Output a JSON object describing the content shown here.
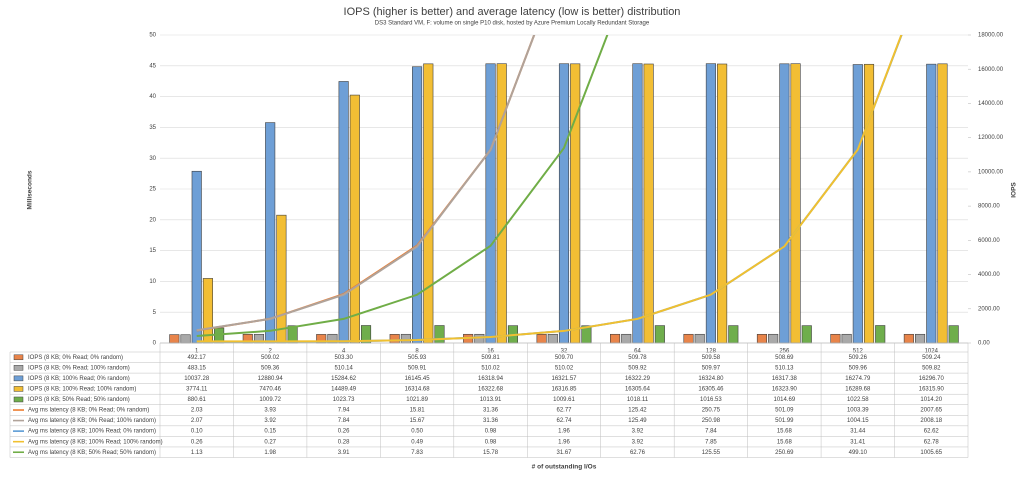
{
  "chart_data": {
    "type": "bar-line-table",
    "title": "IOPS (higher is better) and average latency (low is better) distribution",
    "subtitle": "DS3 Standard VM, F: volume on single P10 disk, hosted by Azure Premium Locally Redundant Storage",
    "y_label": "Milliseconds",
    "y2_label": "IOPS",
    "x_label": "# of outstanding I/Os",
    "categories": [
      "1",
      "2",
      "4",
      "8",
      "16",
      "32",
      "64",
      "128",
      "256",
      "512",
      "1024"
    ],
    "ylim": [
      0,
      50
    ],
    "yticks": [
      0,
      5,
      10,
      15,
      20,
      25,
      30,
      35,
      40,
      45,
      50
    ],
    "y2lim": [
      0,
      18000
    ],
    "y2ticks": [
      {
        "value": 0,
        "label": "0.00"
      },
      {
        "value": 2000,
        "label": "2000.00"
      },
      {
        "value": 4000,
        "label": "4000.00"
      },
      {
        "value": 6000,
        "label": "6000.00"
      },
      {
        "value": 8000,
        "label": "8000.00"
      },
      {
        "value": 10000,
        "label": "10000.00"
      },
      {
        "value": 12000,
        "label": "12000.00"
      },
      {
        "value": 14000,
        "label": "14000.00"
      },
      {
        "value": 16000,
        "label": "16000.00"
      },
      {
        "value": 18000,
        "label": "18000.00"
      }
    ],
    "series": [
      {
        "name": "IOPS (8 KB; 0% Read; 0% random)",
        "type": "bar",
        "axis": "y2",
        "color": "#e8844a",
        "values": [
          492.17,
          509.02,
          503.3,
          505.93,
          509.81,
          509.7,
          509.78,
          509.58,
          508.69,
          509.26,
          509.24
        ],
        "value_labels": [
          "492.17",
          "509.02",
          "503.30",
          "505.93",
          "509.81",
          "509.70",
          "509.78",
          "509.58",
          "508.69",
          "509.26",
          "509.24"
        ]
      },
      {
        "name": "IOPS (8 KB; 0% Read; 100% random)",
        "type": "bar",
        "axis": "y2",
        "color": "#a9a9a9",
        "values": [
          483.15,
          509.36,
          510.14,
          509.91,
          510.02,
          510.02,
          509.92,
          509.97,
          510.13,
          509.96,
          509.82
        ],
        "value_labels": [
          "483.15",
          "509.36",
          "510.14",
          "509.91",
          "510.02",
          "510.02",
          "509.92",
          "509.97",
          "510.13",
          "509.96",
          "509.82"
        ]
      },
      {
        "name": "IOPS (8 KB; 100% Read; 0% random)",
        "type": "bar",
        "axis": "y2",
        "color": "#6e9fd6",
        "values": [
          10037.28,
          12880.94,
          15284.62,
          16145.45,
          16318.94,
          16321.57,
          16322.29,
          16324.8,
          16317.38,
          16274.79,
          16296.7
        ],
        "value_labels": [
          "10037.28",
          "12880.94",
          "15284.62",
          "16145.45",
          "16318.94",
          "16321.57",
          "16322.29",
          "16324.80",
          "16317.38",
          "16274.79",
          "16296.70"
        ]
      },
      {
        "name": "IOPS (8 KB; 100% Read; 100% random)",
        "type": "bar",
        "axis": "y2",
        "color": "#f2be34",
        "values": [
          3774.11,
          7470.46,
          14489.49,
          16314.68,
          16322.68,
          16316.85,
          16305.64,
          16305.46,
          16323.9,
          16289.68,
          16315.9
        ],
        "value_labels": [
          "3774.11",
          "7470.46",
          "14489.49",
          "16314.68",
          "16322.68",
          "16316.85",
          "16305.64",
          "16305.46",
          "16323.90",
          "16289.68",
          "16315.90"
        ]
      },
      {
        "name": "IOPS (8 KB; 50% Read; 50% random)",
        "type": "bar",
        "axis": "y2",
        "color": "#6fae4c",
        "values": [
          880.61,
          1009.72,
          1023.73,
          1021.89,
          1013.91,
          1009.61,
          1018.11,
          1016.53,
          1014.69,
          1022.58,
          1014.2
        ],
        "value_labels": [
          "880.61",
          "1009.72",
          "1023.73",
          "1021.89",
          "1013.91",
          "1009.61",
          "1018.11",
          "1016.53",
          "1014.69",
          "1022.58",
          "1014.20"
        ]
      },
      {
        "name": "Avg ms latency (8 KB; 0% Read; 0% random)",
        "type": "line",
        "axis": "y",
        "color": "#ed7d31",
        "values": [
          2.03,
          3.93,
          7.94,
          15.81,
          31.36,
          62.77,
          125.42,
          250.75,
          501.09,
          1003.39,
          2007.65
        ],
        "value_labels": [
          "2.03",
          "3.93",
          "7.94",
          "15.81",
          "31.36",
          "62.77",
          "125.42",
          "250.75",
          "501.09",
          "1003.39",
          "2007.65"
        ]
      },
      {
        "name": "Avg ms latency (8 KB; 0% Read; 100% random)",
        "type": "line",
        "axis": "y",
        "color": "#b0a39a",
        "values": [
          2.07,
          3.92,
          7.84,
          15.67,
          31.36,
          62.74,
          125.49,
          250.98,
          501.99,
          1004.15,
          2008.18
        ],
        "value_labels": [
          "2.07",
          "3.92",
          "7.84",
          "15.67",
          "31.36",
          "62.74",
          "125.49",
          "250.98",
          "501.99",
          "1004.15",
          "2008.18"
        ]
      },
      {
        "name": "Avg ms latency (8 KB; 100% Read; 0% random)",
        "type": "line",
        "axis": "y",
        "color": "#5b9bd5",
        "values": [
          0.1,
          0.15,
          0.26,
          0.5,
          0.98,
          1.96,
          3.92,
          7.84,
          15.68,
          31.44,
          62.62
        ],
        "value_labels": [
          "0.10",
          "0.15",
          "0.26",
          "0.50",
          "0.98",
          "1.96",
          "3.92",
          "7.84",
          "15.68",
          "31.44",
          "62.62"
        ]
      },
      {
        "name": "Avg ms latency (8 KB; 100% Read; 100% random)",
        "type": "line",
        "axis": "y",
        "color": "#f0c030",
        "values": [
          0.26,
          0.27,
          0.28,
          0.49,
          0.98,
          1.96,
          3.92,
          7.85,
          15.68,
          31.41,
          62.78
        ],
        "value_labels": [
          "0.26",
          "0.27",
          "0.28",
          "0.49",
          "0.98",
          "1.96",
          "3.92",
          "7.85",
          "15.68",
          "31.41",
          "62.78"
        ]
      },
      {
        "name": "Avg ms latency (8 KB; 50% Read; 50% random)",
        "type": "line",
        "axis": "y",
        "color": "#70ad47",
        "values": [
          1.13,
          1.98,
          3.91,
          7.83,
          15.78,
          31.67,
          62.76,
          125.55,
          250.69,
          499.1,
          1005.65
        ],
        "value_labels": [
          "1.13",
          "1.98",
          "3.91",
          "7.83",
          "15.78",
          "31.67",
          "62.76",
          "125.55",
          "250.69",
          "499.10",
          "1005.65"
        ]
      }
    ]
  }
}
